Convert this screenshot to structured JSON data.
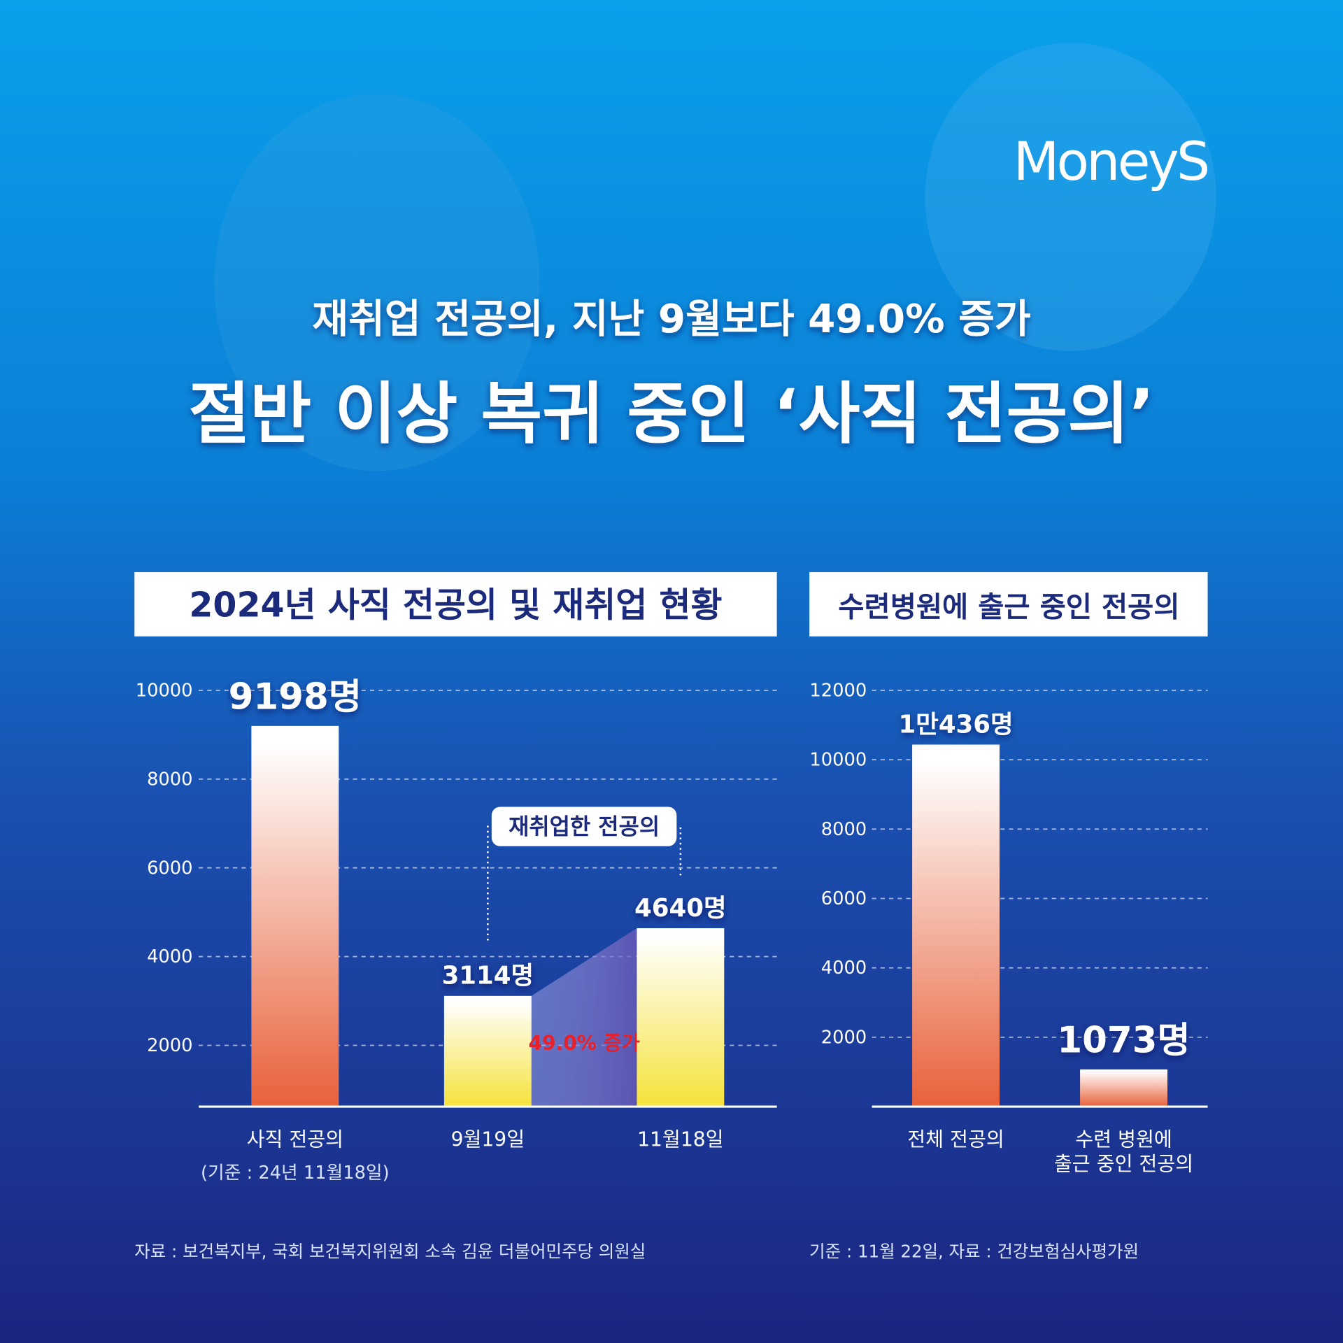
{
  "header": {
    "brand": "MoneyS",
    "subtitle": "재취업 전공의, 지난 9월보다 49.0% 증가",
    "title": "절반 이상 복귀 중인 ‘사직 전공의’"
  },
  "chart_data": [
    {
      "type": "bar",
      "title": "2024년 사직 전공의 및 재취업 현황",
      "categories": [
        "사직 전공의",
        "9월19일",
        "11월18일"
      ],
      "category_note": "(기준 : 24년 11월18일)",
      "values": [
        9198,
        3114,
        4640
      ],
      "value_labels": [
        "9198명",
        "3114명",
        "4640명"
      ],
      "colors": [
        "#e8613a",
        "#f5e23a",
        "#f5e23a"
      ],
      "ylim": [
        620,
        10000
      ],
      "yticks": [
        2000,
        4000,
        6000,
        8000,
        10000
      ],
      "grid": true,
      "annotations": [
        "재취업한 전공의",
        "49.0% 증가"
      ],
      "source": "자료 : 보건복지부, 국회 보건복지위원회 소속 김윤 더불어민주당 의원실"
    },
    {
      "type": "bar",
      "title": "수련병원에 출근 중인 전공의",
      "categories": [
        "전체 전공의",
        "수련 병원에\n출근 중인 전공의"
      ],
      "values": [
        10436,
        1073
      ],
      "value_labels": [
        "1만436명",
        "1073명"
      ],
      "color": "#e8613a",
      "ylim": [
        0,
        12000
      ],
      "yticks": [
        2000,
        4000,
        6000,
        8000,
        10000,
        12000
      ],
      "grid": true,
      "source": "기준 : 11월 22일, 자료 : 건강보험심사평가원"
    }
  ]
}
